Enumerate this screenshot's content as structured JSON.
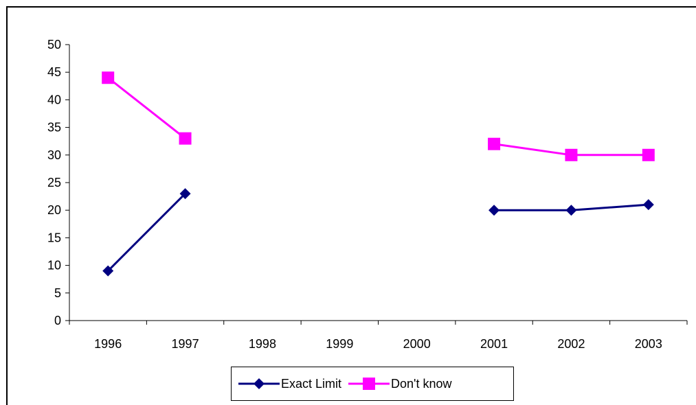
{
  "chart_data": {
    "type": "line",
    "title": "",
    "xlabel": "",
    "ylabel": "",
    "categories": [
      "1996",
      "1997",
      "1998",
      "1999",
      "2000",
      "2001",
      "2002",
      "2003"
    ],
    "ylim": [
      0,
      50
    ],
    "yticks": [
      0,
      5,
      10,
      15,
      20,
      25,
      30,
      35,
      40,
      45,
      50
    ],
    "grid": false,
    "legend_position": "bottom",
    "series": [
      {
        "name": "Exact Limit",
        "color": "#000080",
        "marker": "diamond",
        "values": [
          9,
          23,
          null,
          null,
          null,
          20,
          20,
          21
        ]
      },
      {
        "name": "Don't know",
        "color": "#FF00FF",
        "marker": "square",
        "values": [
          44,
          33,
          null,
          null,
          null,
          32,
          30,
          30
        ]
      }
    ]
  }
}
